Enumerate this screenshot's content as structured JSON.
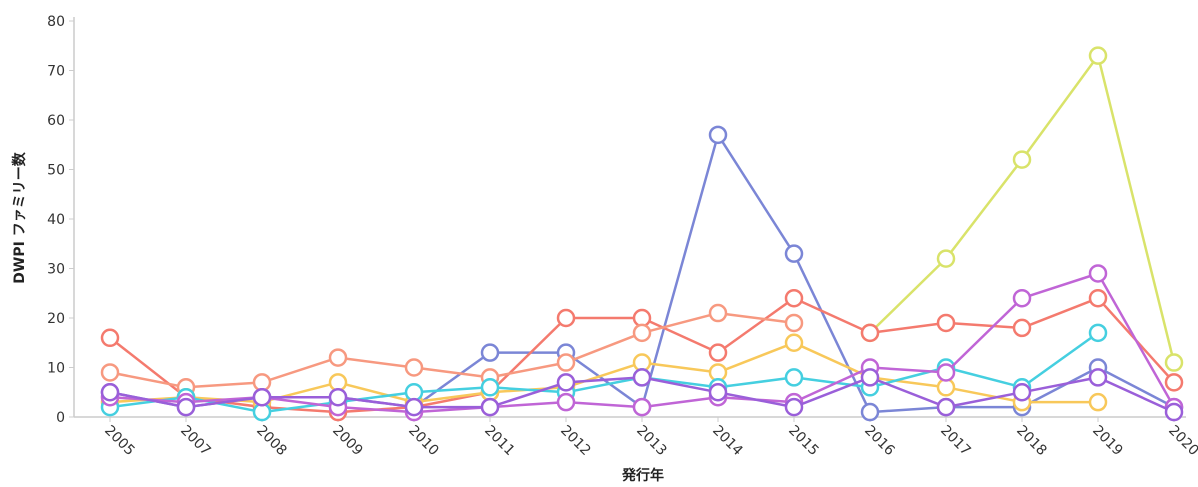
{
  "chart_data": {
    "type": "line",
    "title": "",
    "xlabel": "発行年",
    "ylabel": "DWPI ファミリー数",
    "categories": [
      "2005",
      "2007",
      "2008",
      "2009",
      "2010",
      "2011",
      "2012",
      "2013",
      "2014",
      "2015",
      "2016",
      "2017",
      "2018",
      "2019",
      "2020"
    ],
    "ylim": [
      0,
      80
    ],
    "yticks": [
      0,
      10,
      20,
      30,
      40,
      50,
      60,
      70,
      80
    ],
    "grid": false,
    "legend": "none",
    "series": [
      {
        "color": "#7b86d6",
        "values": [
          5,
          2,
          4,
          4,
          2,
          13,
          13,
          2,
          57,
          33,
          1,
          2,
          2,
          10,
          2
        ]
      },
      {
        "color": "#d9e36a",
        "values": [
          null,
          null,
          null,
          null,
          null,
          null,
          null,
          null,
          null,
          null,
          17,
          32,
          52,
          73,
          11
        ]
      },
      {
        "color": "#f47a6e",
        "values": [
          16,
          4,
          2,
          1,
          2,
          5,
          20,
          20,
          13,
          24,
          17,
          19,
          18,
          24,
          7
        ]
      },
      {
        "color": "#f79980",
        "values": [
          9,
          6,
          7,
          12,
          10,
          8,
          11,
          17,
          21,
          19,
          null,
          null,
          null,
          null,
          null
        ]
      },
      {
        "color": "#f8c85a",
        "values": [
          3,
          4,
          3,
          7,
          3,
          5,
          6,
          11,
          9,
          15,
          8,
          6,
          3,
          3,
          null
        ]
      },
      {
        "color": "#45cfe0",
        "values": [
          2,
          4,
          1,
          3,
          5,
          6,
          5,
          8,
          6,
          8,
          6,
          10,
          6,
          17,
          null
        ]
      },
      {
        "color": "#c065d6",
        "values": [
          4,
          3,
          4,
          2,
          1,
          2,
          3,
          2,
          4,
          3,
          10,
          9,
          24,
          29,
          2
        ]
      },
      {
        "color": "#9a5fd9",
        "values": [
          5,
          2,
          4,
          4,
          2,
          2,
          7,
          8,
          5,
          2,
          8,
          2,
          5,
          8,
          1
        ]
      }
    ]
  }
}
